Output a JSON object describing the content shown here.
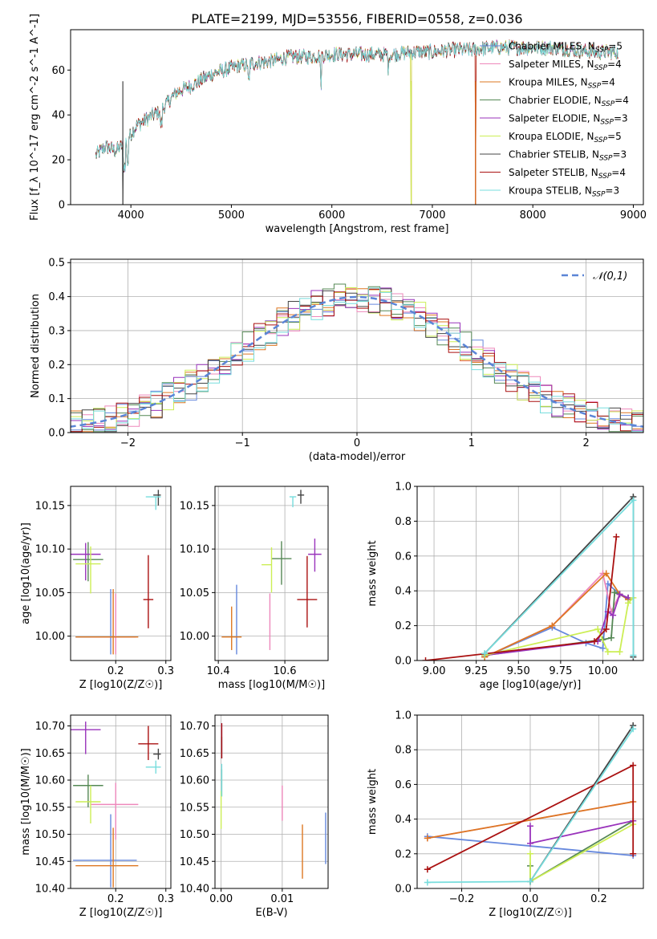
{
  "figure_title": "PLATE=2199, MJD=53556, FIBERID=0558, z=0.036",
  "colors": {
    "Chabrier MILES": "#6688dd",
    "Salpeter MILES": "#ee88bb",
    "Kroupa MILES": "#dd7722",
    "Chabrier ELODIE": "#558855",
    "Salpeter ELODIE": "#9933bb",
    "Kroupa ELODIE": "#ccee55",
    "Chabrier STELIB": "#444444",
    "Salpeter STELIB": "#aa1111",
    "Kroupa STELIB": "#77dddd"
  },
  "chart_data": [
    {
      "id": "spectrum",
      "type": "line",
      "xlabel": "wavelength [Angstrom, rest frame]",
      "ylabel": "Flux [f_λ 10^-17 erg cm^-2 s^-1 A^-1]",
      "xlim": [
        3400,
        9100
      ],
      "ylim": [
        0,
        78
      ],
      "xticks": [
        4000,
        5000,
        6000,
        7000,
        8000,
        9000
      ],
      "yticks": [
        0,
        20,
        40,
        60
      ],
      "grid": false,
      "legend_position": "right",
      "legend": [
        {
          "name": "Chabrier MILES",
          "nssp": 5
        },
        {
          "name": "Salpeter MILES",
          "nssp": 4
        },
        {
          "name": "Kroupa MILES",
          "nssp": 4
        },
        {
          "name": "Chabrier ELODIE",
          "nssp": 4
        },
        {
          "name": "Salpeter ELODIE",
          "nssp": 3
        },
        {
          "name": "Kroupa ELODIE",
          "nssp": 5
        },
        {
          "name": "Chabrier STELIB",
          "nssp": 3
        },
        {
          "name": "Salpeter STELIB",
          "nssp": 4
        },
        {
          "name": "Kroupa STELIB",
          "nssp": 3
        }
      ],
      "continuum_x": [
        3650,
        3750,
        3850,
        3950,
        4050,
        4150,
        4300,
        4450,
        4600,
        4800,
        5000,
        5200,
        5400,
        5600,
        5800,
        6000,
        6200,
        6400,
        6600,
        6800,
        7000,
        7200,
        7400,
        7600,
        7800,
        8000,
        8200,
        8400,
        8600,
        8800
      ],
      "continuum_y": [
        22,
        26,
        24,
        28,
        35,
        38,
        42,
        50,
        53,
        58,
        61,
        63,
        64,
        66,
        66,
        67,
        67,
        67,
        67,
        68,
        68,
        69,
        69,
        70,
        70,
        70,
        70,
        69,
        68,
        68
      ],
      "dropouts": [
        {
          "name": "Chabrier STELIB",
          "x": 3920
        },
        {
          "name": "Kroupa MILES",
          "x": 6790
        },
        {
          "name": "Kroupa ELODIE",
          "x": 6790
        },
        {
          "name": "Salpeter STELIB",
          "x": 7430
        },
        {
          "name": "Kroupa MILES",
          "x": 7430
        }
      ]
    },
    {
      "id": "residual_hist",
      "type": "bar",
      "xlabel": "(data-model)/error",
      "ylabel": "Normed distribution",
      "xlim": [
        -2.5,
        2.5
      ],
      "ylim": [
        0,
        0.51
      ],
      "xticks": [
        -2,
        -1,
        0,
        1,
        2
      ],
      "yticks": [
        0.0,
        0.1,
        0.2,
        0.3,
        0.4,
        0.5
      ],
      "grid": true,
      "legend_position": "top-right",
      "legend_label": "𝒩(0,1)",
      "bin_width": 0.1
    },
    {
      "id": "age_vs_Z",
      "type": "scatter",
      "xlabel": "Z [log10(Z/Z☉)]",
      "ylabel": "age [log10(age/yr)]",
      "xlim": [
        0.11,
        0.31
      ],
      "ylim": [
        9.972,
        10.172
      ],
      "xticks": [
        0.2,
        0.3
      ],
      "yticks": [
        10.0,
        10.05,
        10.1,
        10.15
      ],
      "grid": true,
      "points": [
        {
          "name": "Chabrier MILES",
          "x": 0.19,
          "y": 9.999,
          "xerr": [
            0.07,
            0.0
          ],
          "yerr": [
            0.02,
            0.055
          ]
        },
        {
          "name": "Salpeter MILES",
          "x": 0.2,
          "y": 9.999,
          "xerr": [
            0.05,
            0.04
          ],
          "yerr": [
            0.02,
            0.05
          ]
        },
        {
          "name": "Kroupa MILES",
          "x": 0.195,
          "y": 9.999,
          "xerr": [
            0.075,
            0.05
          ],
          "yerr": [
            0.02,
            0.055
          ]
        },
        {
          "name": "Chabrier ELODIE",
          "x": 0.145,
          "y": 10.088,
          "xerr": [
            0.03,
            0.03
          ],
          "yerr": [
            0.025,
            0.02
          ]
        },
        {
          "name": "Salpeter ELODIE",
          "x": 0.14,
          "y": 10.094,
          "xerr": [
            0.03,
            0.03
          ],
          "yerr": [
            0.03,
            0.013
          ]
        },
        {
          "name": "Kroupa ELODIE",
          "x": 0.15,
          "y": 10.083,
          "xerr": [
            0.03,
            0.02
          ],
          "yerr": [
            0.034,
            0.02
          ]
        },
        {
          "name": "Chabrier STELIB",
          "x": 0.285,
          "y": 10.162,
          "xerr": [
            0.01,
            0.005
          ],
          "yerr": [
            0.012,
            0.006
          ]
        },
        {
          "name": "Salpeter STELIB",
          "x": 0.265,
          "y": 10.042,
          "xerr": [
            0.01,
            0.01
          ],
          "yerr": [
            0.033,
            0.051
          ]
        },
        {
          "name": "Kroupa STELIB",
          "x": 0.28,
          "y": 10.16,
          "xerr": [
            0.02,
            0.01
          ],
          "yerr": [
            0.015,
            0.0
          ]
        }
      ]
    },
    {
      "id": "age_vs_mass",
      "type": "scatter",
      "xlabel": "mass [log10(M/M☉)]",
      "ylabel": "",
      "xlim": [
        10.39,
        10.73
      ],
      "ylim": [
        9.972,
        10.172
      ],
      "xticks": [
        10.4,
        10.6
      ],
      "yticks": [
        10.0,
        10.05,
        10.1,
        10.15
      ],
      "grid": true,
      "points": [
        {
          "name": "Chabrier MILES",
          "x": 10.455,
          "y": 9.999,
          "xerr": [
            0.0,
            0.0
          ],
          "yerr": [
            0.02,
            0.06
          ]
        },
        {
          "name": "Salpeter MILES",
          "x": 10.555,
          "y": 9.999,
          "xerr": [
            0.0,
            0.0
          ],
          "yerr": [
            0.015,
            0.05
          ]
        },
        {
          "name": "Kroupa MILES",
          "x": 10.44,
          "y": 9.999,
          "xerr": [
            0.03,
            0.03
          ],
          "yerr": [
            0.015,
            0.035
          ]
        },
        {
          "name": "Chabrier ELODIE",
          "x": 10.59,
          "y": 10.089,
          "xerr": [
            0.03,
            0.03
          ],
          "yerr": [
            0.03,
            0.02
          ]
        },
        {
          "name": "Salpeter ELODIE",
          "x": 10.69,
          "y": 10.094,
          "xerr": [
            0.02,
            0.02
          ],
          "yerr": [
            0.02,
            0.018
          ]
        },
        {
          "name": "Kroupa ELODIE",
          "x": 10.56,
          "y": 10.082,
          "xerr": [
            0.03,
            0.0
          ],
          "yerr": [
            0.032,
            0.02
          ]
        },
        {
          "name": "Chabrier STELIB",
          "x": 10.648,
          "y": 10.162,
          "xerr": [
            0.01,
            0.01
          ],
          "yerr": [
            0.01,
            0.006
          ]
        },
        {
          "name": "Salpeter STELIB",
          "x": 10.667,
          "y": 10.042,
          "xerr": [
            0.03,
            0.03
          ],
          "yerr": [
            0.032,
            0.05
          ]
        },
        {
          "name": "Kroupa STELIB",
          "x": 10.624,
          "y": 10.16,
          "xerr": [
            0.01,
            0.01
          ],
          "yerr": [
            0.012,
            0.0
          ]
        }
      ]
    },
    {
      "id": "weight_vs_age",
      "type": "line",
      "xlabel": "age [log10(age/yr)]",
      "ylabel": "mass weight",
      "xlim": [
        8.9,
        10.24
      ],
      "ylim": [
        0,
        1.0
      ],
      "xticks": [
        9.0,
        9.25,
        9.5,
        9.75,
        10.0
      ],
      "yticks": [
        0.0,
        0.2,
        0.4,
        0.6,
        0.8,
        1.0
      ],
      "grid": true,
      "series": [
        {
          "name": "Chabrier MILES",
          "x": [
            9.3,
            9.7,
            9.9,
            10.0,
            10.03,
            10.1,
            10.15
          ],
          "y": [
            0.02,
            0.19,
            0.1,
            0.07,
            0.44,
            0.38,
            0.35
          ]
        },
        {
          "name": "Salpeter MILES",
          "x": [
            9.3,
            9.7,
            10.0,
            10.05,
            10.1,
            10.15
          ],
          "y": [
            0.02,
            0.2,
            0.5,
            0.28,
            0.38,
            0.36
          ]
        },
        {
          "name": "Kroupa MILES",
          "x": [
            9.3,
            9.7,
            10.02,
            10.1,
            10.15
          ],
          "y": [
            0.02,
            0.2,
            0.5,
            0.38,
            0.35
          ]
        },
        {
          "name": "Chabrier ELODIE",
          "x": [
            9.3,
            10.0,
            10.05,
            10.07,
            10.15
          ],
          "y": [
            0.03,
            0.12,
            0.13,
            0.39,
            0.36
          ]
        },
        {
          "name": "Salpeter ELODIE",
          "x": [
            9.3,
            9.97,
            10.03,
            10.06,
            10.1,
            10.15
          ],
          "y": [
            0.03,
            0.11,
            0.28,
            0.26,
            0.38,
            0.36
          ]
        },
        {
          "name": "Kroupa ELODIE",
          "x": [
            9.3,
            9.97,
            10.03,
            10.1,
            10.15,
            10.18
          ],
          "y": [
            0.03,
            0.18,
            0.05,
            0.05,
            0.33,
            0.36
          ]
        },
        {
          "name": "Chabrier STELIB",
          "x": [
            9.3,
            10.18,
            10.18
          ],
          "y": [
            0.04,
            0.94,
            0.02
          ]
        },
        {
          "name": "Salpeter STELIB",
          "x": [
            8.95,
            9.95,
            10.02,
            10.08
          ],
          "y": [
            0.0,
            0.11,
            0.18,
            0.71
          ]
        },
        {
          "name": "Kroupa STELIB",
          "x": [
            9.3,
            10.18,
            10.18
          ],
          "y": [
            0.04,
            0.92,
            0.03
          ]
        }
      ]
    },
    {
      "id": "mass_vs_Z",
      "type": "scatter",
      "xlabel": "Z [log10(Z/Z☉)]",
      "ylabel": "mass [log10(M/M☉)]",
      "xlim": [
        0.11,
        0.31
      ],
      "ylim": [
        10.4,
        10.72
      ],
      "xticks": [
        0.2,
        0.3
      ],
      "yticks": [
        10.4,
        10.45,
        10.5,
        10.55,
        10.6,
        10.65,
        10.7
      ],
      "grid": true,
      "points": [
        {
          "name": "Chabrier MILES",
          "x": 0.19,
          "y": 10.452,
          "xerr": [
            0.075,
            0.052
          ],
          "yerr": [
            0.05,
            0.085
          ]
        },
        {
          "name": "Salpeter MILES",
          "x": 0.2,
          "y": 10.555,
          "xerr": [
            0.05,
            0.045
          ],
          "yerr": [
            0.065,
            0.04
          ]
        },
        {
          "name": "Kroupa MILES",
          "x": 0.195,
          "y": 10.442,
          "xerr": [
            0.075,
            0.05
          ],
          "yerr": [
            0.04,
            0.07
          ]
        },
        {
          "name": "Chabrier ELODIE",
          "x": 0.145,
          "y": 10.59,
          "xerr": [
            0.03,
            0.03
          ],
          "yerr": [
            0.04,
            0.02
          ]
        },
        {
          "name": "Salpeter ELODIE",
          "x": 0.14,
          "y": 10.693,
          "xerr": [
            0.03,
            0.03
          ],
          "yerr": [
            0.045,
            0.015
          ]
        },
        {
          "name": "Kroupa ELODIE",
          "x": 0.15,
          "y": 10.56,
          "xerr": [
            0.03,
            0.02
          ],
          "yerr": [
            0.04,
            0.03
          ]
        },
        {
          "name": "Chabrier STELIB",
          "x": 0.285,
          "y": 10.648,
          "xerr": [
            0.01,
            0.005
          ],
          "yerr": [
            0.01,
            0.01
          ]
        },
        {
          "name": "Salpeter STELIB",
          "x": 0.265,
          "y": 10.667,
          "xerr": [
            0.02,
            0.02
          ],
          "yerr": [
            0.03,
            0.033
          ]
        },
        {
          "name": "Kroupa STELIB",
          "x": 0.28,
          "y": 10.624,
          "xerr": [
            0.02,
            0.01
          ],
          "yerr": [
            0.012,
            0.012
          ]
        }
      ]
    },
    {
      "id": "mass_vs_ebv",
      "type": "scatter",
      "xlabel": "E(B-V)",
      "ylabel": "",
      "xlim": [
        -0.001,
        0.0175
      ],
      "ylim": [
        10.4,
        10.72
      ],
      "xticks": [
        0.0,
        0.01
      ],
      "yticks": [
        10.4,
        10.45,
        10.5,
        10.55,
        10.6,
        10.65,
        10.7
      ],
      "grid": true,
      "points": [
        {
          "name": "Chabrier MILES",
          "x": 0.0171,
          "y": 10.49,
          "xerr": [
            0,
            0
          ],
          "yerr": [
            0.045,
            0.05
          ]
        },
        {
          "name": "Salpeter MILES",
          "x": 0.01,
          "y": 10.555,
          "xerr": [
            0,
            0
          ],
          "yerr": [
            0.03,
            0.035
          ]
        },
        {
          "name": "Kroupa MILES",
          "x": 0.0133,
          "y": 10.468,
          "xerr": [
            0,
            0
          ],
          "yerr": [
            0.05,
            0.05
          ]
        },
        {
          "name": "Chabrier ELODIE",
          "x": 0.0001,
          "y": 10.6,
          "xerr": [
            0,
            0
          ],
          "yerr": [
            0.03,
            0.02
          ]
        },
        {
          "name": "Salpeter ELODIE",
          "x": 0.0001,
          "y": 10.67,
          "xerr": [
            0,
            0
          ],
          "yerr": [
            0.03,
            0.035
          ]
        },
        {
          "name": "Kroupa ELODIE",
          "x": 0.0,
          "y": 10.555,
          "xerr": [
            0,
            0
          ],
          "yerr": [
            0.045,
            0.025
          ]
        },
        {
          "name": "Chabrier STELIB",
          "x": 0.0001,
          "y": 10.66,
          "xerr": [
            0,
            0
          ],
          "yerr": [
            0.02,
            0.02
          ]
        },
        {
          "name": "Salpeter STELIB",
          "x": 0.0001,
          "y": 10.67,
          "xerr": [
            0,
            0
          ],
          "yerr": [
            0.03,
            0.035
          ]
        },
        {
          "name": "Kroupa STELIB",
          "x": 0.0001,
          "y": 10.6,
          "xerr": [
            0,
            0
          ],
          "yerr": [
            0.03,
            0.03
          ]
        }
      ]
    },
    {
      "id": "weight_vs_Z",
      "type": "line",
      "xlabel": "Z [log10(Z/Z☉)]",
      "ylabel": "mass weight",
      "xlim": [
        -0.33,
        0.33
      ],
      "ylim": [
        0,
        1.0
      ],
      "xticks": [
        -0.2,
        0.0,
        0.2
      ],
      "yticks": [
        0.0,
        0.2,
        0.4,
        0.6,
        0.8,
        1.0
      ],
      "grid": true,
      "series": [
        {
          "name": "Chabrier MILES",
          "x": [
            -0.3,
            0.3
          ],
          "y": [
            0.3,
            0.19
          ]
        },
        {
          "name": "Salpeter MILES",
          "x": [
            -0.3,
            0.3
          ],
          "y": [
            0.29,
            0.5
          ]
        },
        {
          "name": "Kroupa MILES",
          "x": [
            -0.3,
            0.3
          ],
          "y": [
            0.29,
            0.5
          ]
        },
        {
          "name": "Chabrier ELODIE",
          "x": [
            0.0,
            0.0,
            0.3
          ],
          "y": [
            0.13,
            0.04,
            0.39
          ]
        },
        {
          "name": "Salpeter ELODIE",
          "x": [
            0.0,
            0.0,
            0.3
          ],
          "y": [
            0.36,
            0.26,
            0.39
          ]
        },
        {
          "name": "Kroupa ELODIE",
          "x": [
            0.0,
            0.0,
            0.3
          ],
          "y": [
            0.2,
            0.04,
            0.37
          ]
        },
        {
          "name": "Chabrier STELIB",
          "x": [
            0.0,
            0.3
          ],
          "y": [
            0.04,
            0.94
          ]
        },
        {
          "name": "Salpeter STELIB",
          "x": [
            -0.3,
            0.3,
            0.3
          ],
          "y": [
            0.11,
            0.71,
            0.2
          ]
        },
        {
          "name": "Kroupa STELIB",
          "x": [
            -0.3,
            0.0,
            0.3
          ],
          "y": [
            0.035,
            0.04,
            0.92
          ]
        }
      ]
    }
  ]
}
